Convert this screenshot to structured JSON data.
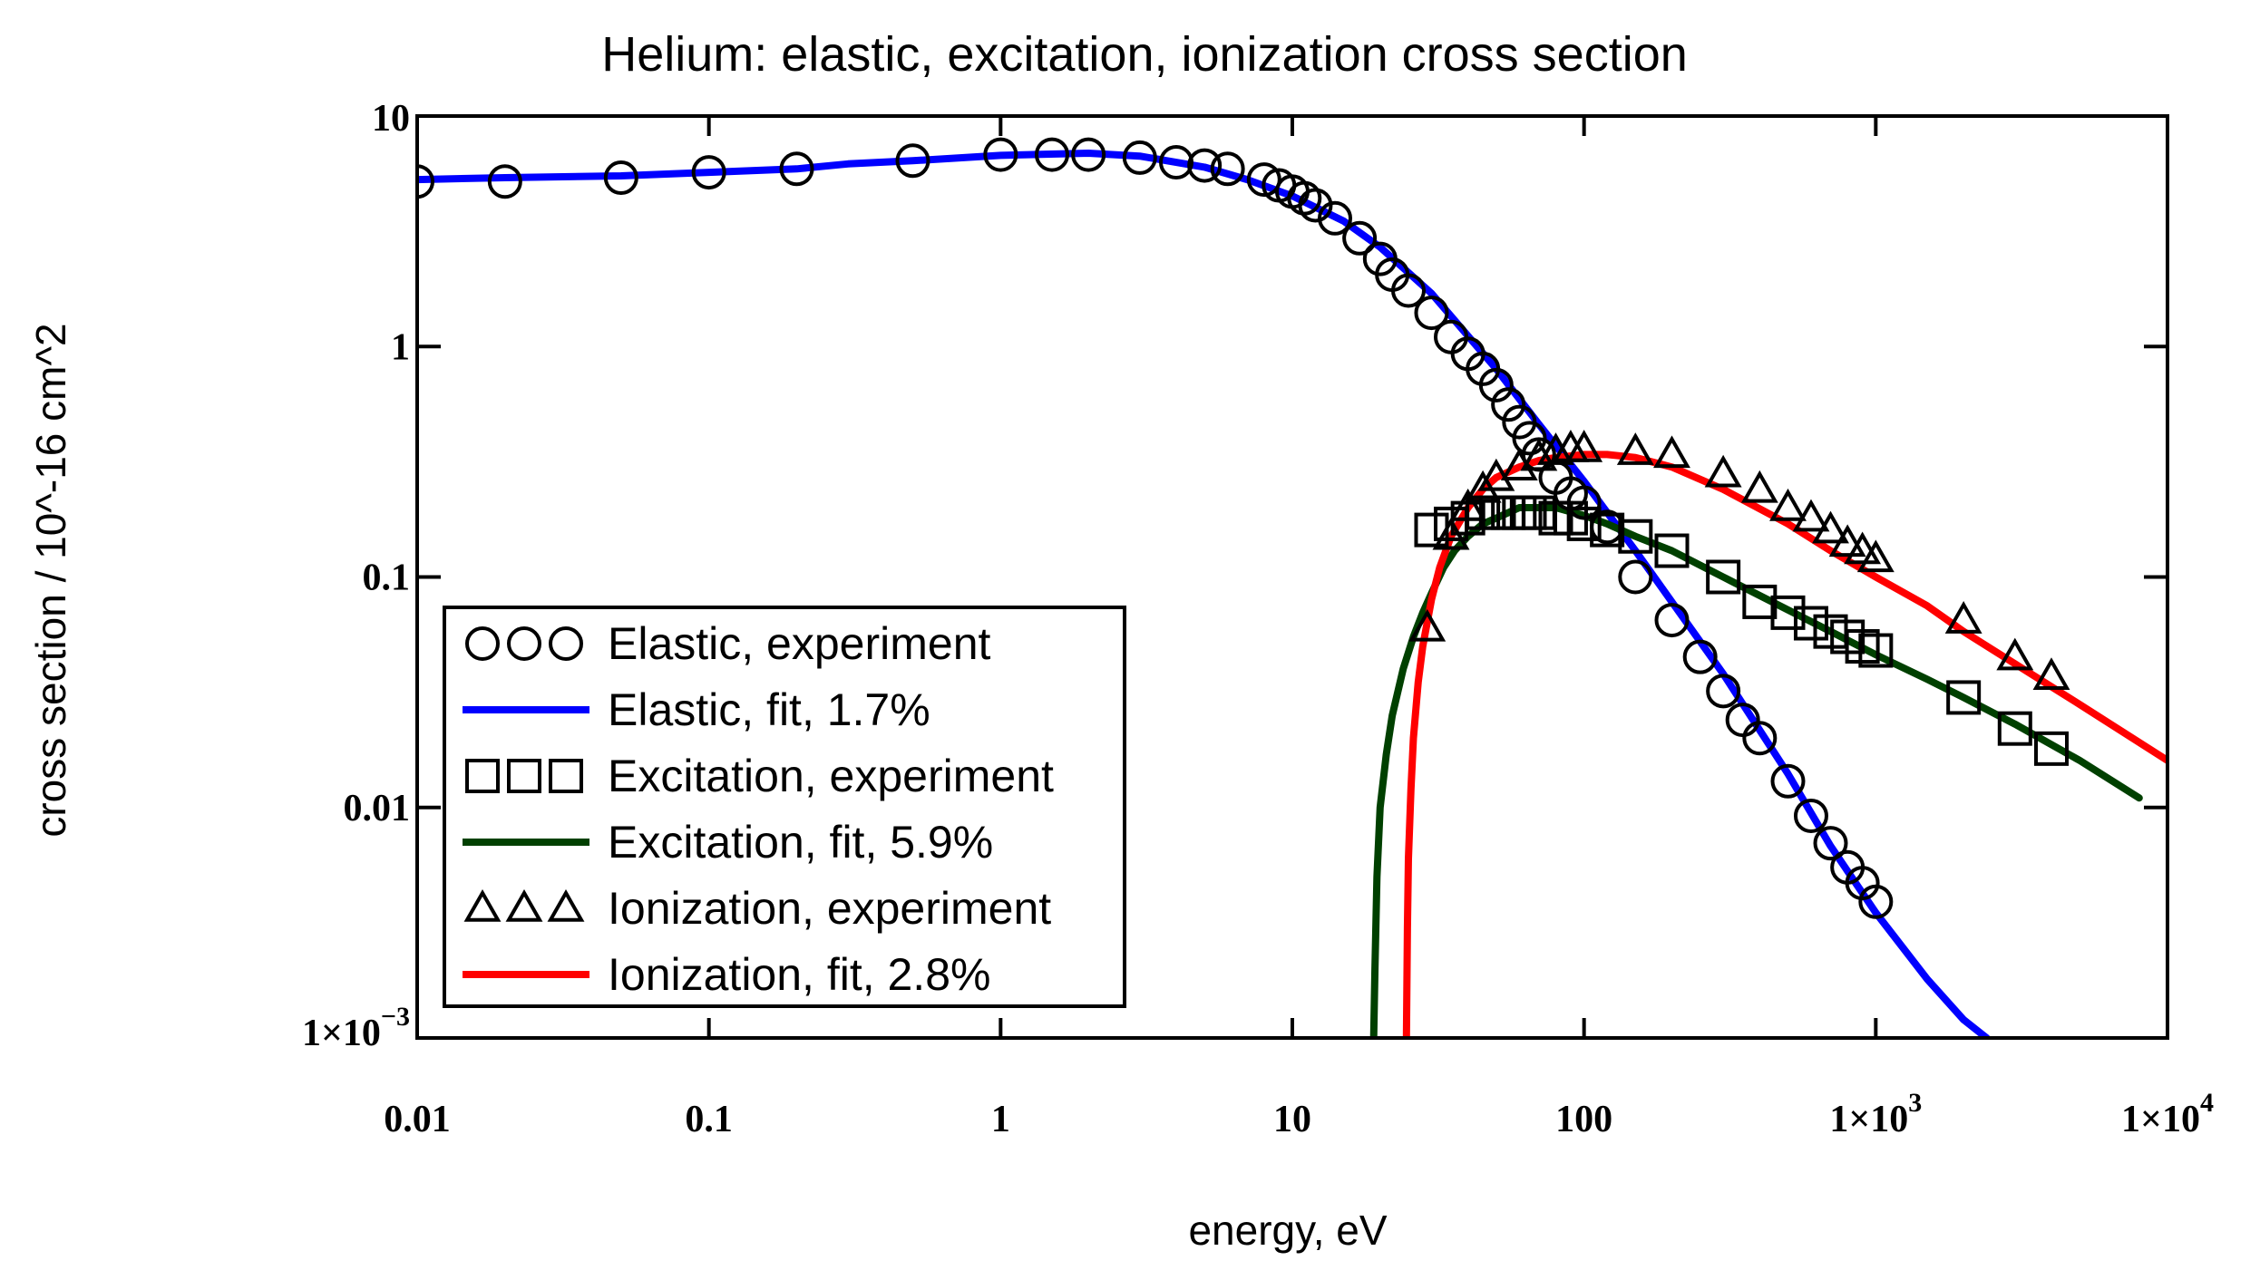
{
  "chart_data": {
    "type": "scatter",
    "title": "Helium: elastic, excitation, ionization cross section",
    "xlabel": "energy, eV",
    "ylabel": "cross section / 10^-16 cm^2",
    "xscale": "log",
    "yscale": "log",
    "xlim": [
      0.01,
      10000
    ],
    "ylim": [
      0.001,
      10
    ],
    "x_ticks": [
      {
        "value": 0.01,
        "label": "0.01"
      },
      {
        "value": 0.1,
        "label": "0.1"
      },
      {
        "value": 1,
        "label": "1"
      },
      {
        "value": 10,
        "label": "10"
      },
      {
        "value": 100,
        "label": "100"
      },
      {
        "value": 1000,
        "label": "1×10",
        "exp": "3"
      },
      {
        "value": 10000,
        "label": "1×10",
        "exp": "4"
      }
    ],
    "y_ticks": [
      {
        "value": 10,
        "label": "10"
      },
      {
        "value": 1,
        "label": "1"
      },
      {
        "value": 0.1,
        "label": "0.1"
      },
      {
        "value": 0.01,
        "label": "0.01"
      },
      {
        "value": 0.001,
        "label": "1×10",
        "exp": "−3"
      }
    ],
    "legend_position": "bottom-left",
    "series": [
      {
        "name": "Elastic, experiment",
        "kind": "markers",
        "marker": "circle",
        "color": "#000000",
        "x": [
          0.01,
          0.02,
          0.05,
          0.1,
          0.2,
          0.5,
          1,
          1.5,
          2,
          3,
          4,
          5,
          6,
          8,
          9,
          10,
          11,
          12,
          14,
          17,
          20,
          22,
          25,
          30,
          35,
          40,
          45,
          50,
          55,
          60,
          65,
          70,
          80,
          90,
          100,
          120,
          150,
          200,
          250,
          300,
          350,
          400,
          500,
          600,
          700,
          800,
          900,
          1000
        ],
        "y": [
          5.2,
          5.2,
          5.4,
          5.7,
          5.9,
          6.4,
          6.8,
          6.8,
          6.8,
          6.6,
          6.3,
          6.1,
          5.9,
          5.3,
          5.0,
          4.7,
          4.4,
          4.1,
          3.6,
          2.95,
          2.4,
          2.05,
          1.75,
          1.4,
          1.1,
          0.93,
          0.8,
          0.68,
          0.56,
          0.47,
          0.4,
          0.34,
          0.27,
          0.23,
          0.21,
          0.165,
          0.1,
          0.065,
          0.045,
          0.032,
          0.024,
          0.02,
          0.013,
          0.0092,
          0.007,
          0.0055,
          0.0047,
          0.0039
        ]
      },
      {
        "name": "Elastic, fit, 1.7%",
        "kind": "line",
        "color": "#0000ff",
        "x": [
          0.01,
          0.02,
          0.05,
          0.1,
          0.2,
          0.3,
          0.5,
          1,
          2,
          3,
          5,
          7,
          10,
          15,
          20,
          30,
          50,
          70,
          100,
          150,
          200,
          300,
          500,
          700,
          1000,
          1500,
          2000,
          2400
        ],
        "y": [
          5.3,
          5.4,
          5.5,
          5.7,
          5.9,
          6.2,
          6.4,
          6.75,
          6.9,
          6.7,
          6.0,
          5.3,
          4.5,
          3.5,
          2.7,
          1.7,
          0.8,
          0.46,
          0.26,
          0.13,
          0.078,
          0.038,
          0.014,
          0.0068,
          0.0035,
          0.0018,
          0.0012,
          0.001
        ]
      },
      {
        "name": "Excitation, experiment",
        "kind": "markers",
        "marker": "square",
        "color": "#000000",
        "x": [
          30,
          35,
          40,
          45,
          50,
          55,
          60,
          65,
          70,
          80,
          90,
          100,
          120,
          150,
          200,
          300,
          400,
          500,
          600,
          700,
          800,
          900,
          1000,
          2000,
          3000,
          4000
        ],
        "y": [
          0.16,
          0.17,
          0.18,
          0.19,
          0.19,
          0.19,
          0.19,
          0.19,
          0.19,
          0.18,
          0.18,
          0.17,
          0.16,
          0.15,
          0.13,
          0.1,
          0.078,
          0.07,
          0.063,
          0.058,
          0.055,
          0.05,
          0.048,
          0.03,
          0.022,
          0.018
        ]
      },
      {
        "name": "Excitation, fit, 5.9%",
        "kind": "line",
        "color": "#004000",
        "x": [
          19,
          19.2,
          19.5,
          20,
          21,
          22,
          24,
          26,
          28,
          30,
          33,
          36,
          40,
          45,
          50,
          60,
          70,
          80,
          100,
          120,
          150,
          200,
          300,
          500,
          700,
          1000,
          1500,
          2000,
          3000,
          5000,
          8000
        ],
        "y": [
          0.001,
          0.002,
          0.005,
          0.01,
          0.017,
          0.025,
          0.04,
          0.055,
          0.07,
          0.085,
          0.11,
          0.13,
          0.15,
          0.17,
          0.18,
          0.2,
          0.2,
          0.2,
          0.185,
          0.17,
          0.15,
          0.13,
          0.1,
          0.072,
          0.058,
          0.046,
          0.036,
          0.03,
          0.023,
          0.016,
          0.011
        ]
      },
      {
        "name": "Ionization, experiment",
        "kind": "markers",
        "marker": "triangle",
        "color": "#000000",
        "x": [
          29,
          35,
          40,
          45,
          50,
          60,
          70,
          80,
          90,
          100,
          150,
          200,
          300,
          400,
          500,
          600,
          700,
          800,
          900,
          1000,
          2000,
          3000,
          4000
        ],
        "y": [
          0.06,
          0.15,
          0.2,
          0.24,
          0.27,
          0.3,
          0.33,
          0.35,
          0.36,
          0.36,
          0.35,
          0.34,
          0.28,
          0.24,
          0.2,
          0.18,
          0.16,
          0.14,
          0.13,
          0.12,
          0.065,
          0.045,
          0.037
        ]
      },
      {
        "name": "Ionization, fit, 2.8%",
        "kind": "line",
        "color": "#ff0000",
        "x": [
          24.6,
          24.8,
          25,
          25.5,
          26,
          27,
          28,
          30,
          32,
          35,
          40,
          45,
          50,
          60,
          70,
          80,
          100,
          120,
          150,
          200,
          300,
          500,
          700,
          1000,
          1500,
          2000,
          3000,
          5000,
          10000
        ],
        "y": [
          0.001,
          0.003,
          0.006,
          0.012,
          0.02,
          0.035,
          0.05,
          0.08,
          0.11,
          0.15,
          0.2,
          0.24,
          0.27,
          0.3,
          0.32,
          0.33,
          0.34,
          0.34,
          0.33,
          0.3,
          0.24,
          0.17,
          0.13,
          0.1,
          0.075,
          0.058,
          0.042,
          0.028,
          0.016
        ]
      }
    ]
  }
}
